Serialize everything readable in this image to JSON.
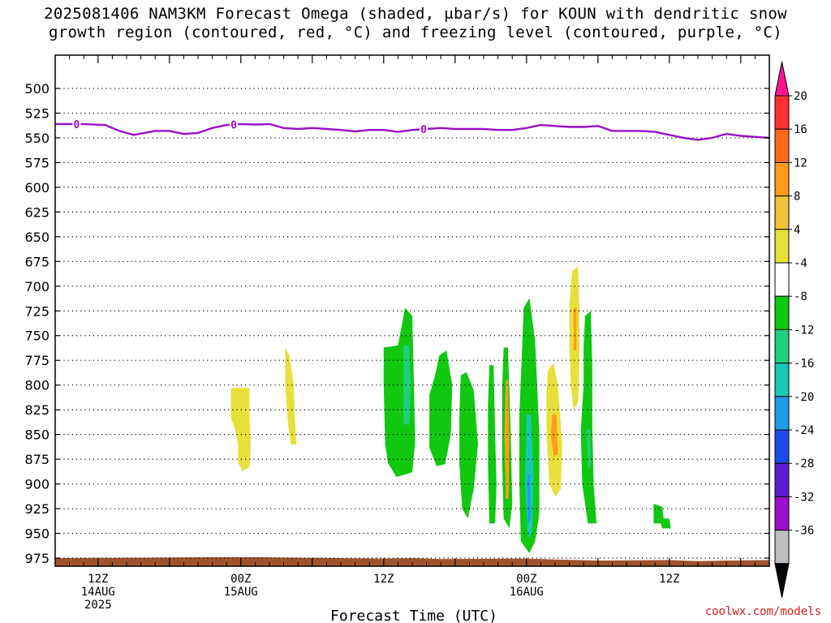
{
  "title_line1": "2025081406 NAM3KM Forecast Omega (shaded, μbar/s) for KOUN with dendritic snow",
  "title_line2": "growth region (contoured, red, °C) and freezing level (contoured, purple, °C)",
  "credit": "coolwx.com/models",
  "chart_data": {
    "type": "area",
    "xlabel": "Forecast Time (UTC)",
    "xlim": [
      -3,
      47
    ],
    "ylim": [
      500,
      985
    ],
    "y_scale": "linear",
    "grid": true,
    "y_ticks": [
      "500",
      "525",
      "550",
      "575",
      "600",
      "625",
      "650",
      "675",
      "700",
      "725",
      "750",
      "775",
      "800",
      "825",
      "850",
      "875",
      "900",
      "925",
      "950",
      "975"
    ],
    "x_ticks": [
      {
        "x": 0,
        "lines": [
          "12Z",
          "14AUG",
          "2025"
        ]
      },
      {
        "x": 10,
        "lines": [
          "00Z",
          "15AUG"
        ]
      },
      {
        "x": 20,
        "lines": [
          "12Z"
        ]
      },
      {
        "x": 30,
        "lines": [
          "00Z",
          "16AUG"
        ]
      },
      {
        "x": 40,
        "lines": [
          "12Z"
        ]
      }
    ],
    "colorbar": {
      "labels": [
        "20",
        "16",
        "12",
        "8",
        "4",
        "-4",
        "-8",
        "-12",
        "-16",
        "-20",
        "-24",
        "-28",
        "-32",
        "-36"
      ],
      "colors": [
        "#ff1493",
        "#ff3030",
        "#ff6a1a",
        "#ff9d1a",
        "#eec43a",
        "#e8e03a",
        "#ffffff",
        "#10c810",
        "#1ecf7e",
        "#18c8b4",
        "#1e9be8",
        "#1e4be8",
        "#5a1ed2",
        "#9b10c8",
        "#bebebe",
        "#000000"
      ]
    },
    "freezing_level": {
      "color": "#9b10c8",
      "label": "0",
      "label_x": [
        -1.5,
        9.5,
        22.8
      ],
      "points": [
        [
          -3,
          536
        ],
        [
          -1,
          536
        ],
        [
          0.5,
          537
        ],
        [
          1.5,
          543
        ],
        [
          2.5,
          547
        ],
        [
          4,
          543
        ],
        [
          5,
          543
        ],
        [
          6,
          546
        ],
        [
          7,
          545
        ],
        [
          8,
          540
        ],
        [
          9,
          537
        ],
        [
          10,
          536
        ],
        [
          11,
          536.5
        ],
        [
          12,
          536
        ],
        [
          13,
          540
        ],
        [
          14,
          541
        ],
        [
          15,
          540
        ],
        [
          16,
          541
        ],
        [
          17,
          542
        ],
        [
          18,
          543.5
        ],
        [
          19,
          542
        ],
        [
          20,
          542
        ],
        [
          21,
          544
        ],
        [
          22,
          542
        ],
        [
          23,
          541
        ],
        [
          24,
          540
        ],
        [
          25,
          541
        ],
        [
          26,
          541
        ],
        [
          27,
          541
        ],
        [
          28,
          542
        ],
        [
          29,
          542
        ],
        [
          30,
          540
        ],
        [
          31,
          537
        ],
        [
          32,
          538
        ],
        [
          33,
          539
        ],
        [
          34,
          539
        ],
        [
          35,
          538
        ],
        [
          36,
          543
        ],
        [
          37,
          543
        ],
        [
          38,
          543
        ],
        [
          39,
          544
        ],
        [
          40,
          547
        ],
        [
          41,
          550
        ],
        [
          42,
          552
        ],
        [
          43,
          550
        ],
        [
          44,
          546
        ],
        [
          45,
          548
        ],
        [
          46,
          549
        ],
        [
          47,
          550
        ]
      ]
    },
    "ground": {
      "color": "#a0522d",
      "top": [
        [
          -3,
          975
        ],
        [
          10,
          974
        ],
        [
          20,
          975.5
        ],
        [
          22,
          975
        ],
        [
          24,
          976
        ],
        [
          30,
          975.5
        ],
        [
          32,
          976.5
        ],
        [
          35,
          977.5
        ],
        [
          40,
          977
        ],
        [
          42,
          978
        ],
        [
          44,
          977.5
        ],
        [
          47,
          977
        ]
      ],
      "bottom": 985
    },
    "omega_regions": [
      {
        "color": "#e8e03a",
        "points": [
          [
            9.3,
            803
          ],
          [
            10.6,
            803
          ],
          [
            10.6,
            830
          ],
          [
            10.7,
            860
          ],
          [
            10.6,
            883
          ],
          [
            10.1,
            887
          ],
          [
            9.8,
            878
          ],
          [
            9.8,
            860
          ],
          [
            9.6,
            845
          ],
          [
            9.3,
            833
          ]
        ]
      },
      {
        "color": "#e8e03a",
        "points": [
          [
            13.1,
            762
          ],
          [
            13.4,
            770
          ],
          [
            13.7,
            800
          ],
          [
            13.8,
            840
          ],
          [
            13.9,
            860
          ],
          [
            13.5,
            860
          ],
          [
            13.3,
            840
          ],
          [
            13.1,
            800
          ]
        ]
      },
      {
        "color": "#10c810",
        "points": [
          [
            20,
            762
          ],
          [
            21,
            760
          ],
          [
            21.5,
            722
          ],
          [
            22,
            730
          ],
          [
            22.1,
            790
          ],
          [
            22.2,
            858
          ],
          [
            22,
            888
          ],
          [
            21.6,
            890
          ],
          [
            20.9,
            893
          ],
          [
            20.3,
            879
          ],
          [
            20.1,
            860
          ],
          [
            20,
            800
          ]
        ]
      },
      {
        "color": "#1ecf7e",
        "points": [
          [
            21.4,
            760
          ],
          [
            21.8,
            760
          ],
          [
            21.9,
            800
          ],
          [
            21.8,
            840
          ],
          [
            21.4,
            840
          ],
          [
            21.4,
            800
          ]
        ]
      },
      {
        "color": "#10c810",
        "points": [
          [
            23.9,
            770
          ],
          [
            24.4,
            765
          ],
          [
            24.8,
            800
          ],
          [
            24.7,
            850
          ],
          [
            24.3,
            880
          ],
          [
            23.7,
            882
          ],
          [
            23.2,
            863
          ],
          [
            23.2,
            810
          ],
          [
            23.6,
            790
          ]
        ]
      },
      {
        "color": "#10c810",
        "points": [
          [
            25.4,
            790
          ],
          [
            25.8,
            787
          ],
          [
            26.3,
            805
          ],
          [
            26.6,
            860
          ],
          [
            26.3,
            905
          ],
          [
            25.9,
            935
          ],
          [
            25.5,
            925
          ],
          [
            25.3,
            880
          ],
          [
            25.3,
            830
          ]
        ]
      },
      {
        "color": "#10c810",
        "points": [
          [
            27.4,
            780
          ],
          [
            27.7,
            780
          ],
          [
            27.8,
            850
          ],
          [
            27.9,
            900
          ],
          [
            27.8,
            940
          ],
          [
            27.4,
            940
          ],
          [
            27.3,
            880
          ],
          [
            27.3,
            820
          ]
        ]
      },
      {
        "color": "#10c810",
        "points": [
          [
            28.4,
            762
          ],
          [
            28.7,
            762
          ],
          [
            28.9,
            850
          ],
          [
            29,
            920
          ],
          [
            28.8,
            945
          ],
          [
            28.4,
            935
          ],
          [
            28.3,
            880
          ],
          [
            28.3,
            800
          ]
        ]
      },
      {
        "color": "#ff9d1a",
        "points": [
          [
            28.55,
            795
          ],
          [
            28.7,
            795
          ],
          [
            28.8,
            850
          ],
          [
            28.75,
            915
          ],
          [
            28.55,
            915
          ],
          [
            28.45,
            850
          ]
        ]
      },
      {
        "color": "#10c810",
        "points": [
          [
            29.8,
            722
          ],
          [
            30.2,
            712
          ],
          [
            30.6,
            755
          ],
          [
            30.9,
            850
          ],
          [
            30.9,
            930
          ],
          [
            30.6,
            958
          ],
          [
            30.2,
            970
          ],
          [
            29.6,
            958
          ],
          [
            29.5,
            900
          ],
          [
            29.5,
            830
          ],
          [
            29.7,
            760
          ]
        ]
      },
      {
        "color": "#18c8b4",
        "points": [
          [
            30.0,
            830
          ],
          [
            30.3,
            830
          ],
          [
            30.5,
            890
          ],
          [
            30.4,
            950
          ],
          [
            30.1,
            955
          ],
          [
            29.9,
            900
          ]
        ]
      },
      {
        "color": "#1e9be8",
        "points": [
          [
            30.05,
            890
          ],
          [
            30.25,
            890
          ],
          [
            30.3,
            935
          ],
          [
            30.1,
            940
          ]
        ]
      },
      {
        "color": "#e8e03a",
        "points": [
          [
            31.5,
            785
          ],
          [
            31.9,
            778
          ],
          [
            32.2,
            800
          ],
          [
            32.5,
            860
          ],
          [
            32.4,
            905
          ],
          [
            32,
            913
          ],
          [
            31.6,
            900
          ],
          [
            31.4,
            850
          ],
          [
            31.4,
            810
          ]
        ]
      },
      {
        "color": "#ff9d1a",
        "points": [
          [
            31.8,
            830
          ],
          [
            32.1,
            830
          ],
          [
            32.2,
            870
          ],
          [
            31.9,
            872
          ],
          [
            31.7,
            850
          ]
        ]
      },
      {
        "color": "#e8e03a",
        "points": [
          [
            33.2,
            685
          ],
          [
            33.6,
            680
          ],
          [
            33.7,
            720
          ],
          [
            33.7,
            780
          ],
          [
            33.6,
            818
          ],
          [
            33.3,
            825
          ],
          [
            33.1,
            800
          ],
          [
            33,
            760
          ],
          [
            33,
            720
          ]
        ]
      },
      {
        "color": "#ff9d1a",
        "points": [
          [
            33.3,
            722
          ],
          [
            33.5,
            722
          ],
          [
            33.5,
            765
          ],
          [
            33.3,
            765
          ]
        ]
      },
      {
        "color": "#10c810",
        "points": [
          [
            34.1,
            730
          ],
          [
            34.5,
            725
          ],
          [
            34.6,
            780
          ],
          [
            34.6,
            840
          ],
          [
            34.7,
            900
          ],
          [
            34.9,
            940
          ],
          [
            34.3,
            940
          ],
          [
            33.9,
            900
          ],
          [
            33.8,
            845
          ],
          [
            34,
            800
          ],
          [
            34,
            760
          ]
        ]
      },
      {
        "color": "#1ecf7e",
        "points": [
          [
            34.2,
            845
          ],
          [
            34.45,
            845
          ],
          [
            34.5,
            880
          ],
          [
            34.3,
            885
          ]
        ]
      },
      {
        "color": "#10c810",
        "points": [
          [
            38.9,
            920
          ],
          [
            39.5,
            923
          ],
          [
            39.6,
            935
          ],
          [
            40.0,
            935
          ],
          [
            40.1,
            945
          ],
          [
            39.5,
            945
          ],
          [
            39.4,
            940
          ],
          [
            38.9,
            940
          ]
        ]
      }
    ]
  }
}
